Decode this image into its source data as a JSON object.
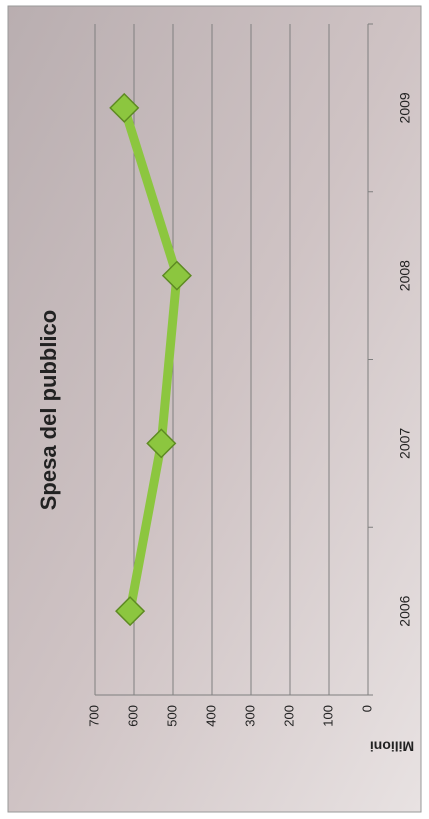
{
  "chart_data": {
    "type": "line",
    "title": "Spesa del pubblico",
    "y_label": "Milioni",
    "categories": [
      "2006",
      "2007",
      "2008",
      "2009"
    ],
    "values": [
      610,
      530,
      490,
      625
    ],
    "color": "#8cc63f",
    "ylim": [
      0,
      700
    ],
    "yticks": [
      0,
      100,
      200,
      300,
      400,
      500,
      600,
      700
    ],
    "grid": true
  }
}
